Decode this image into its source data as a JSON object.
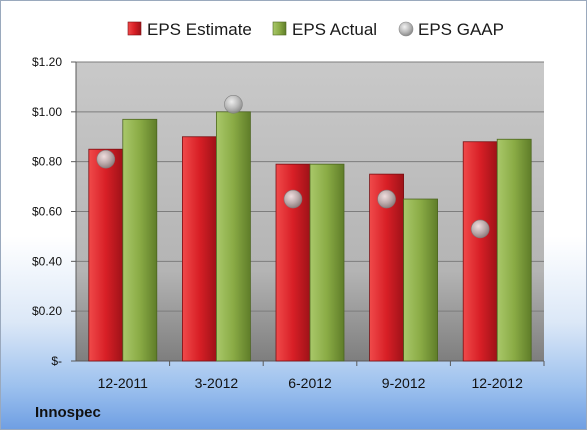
{
  "chart_data": {
    "type": "bar",
    "title": "",
    "xlabel": "",
    "ylabel": "",
    "categories": [
      "12-2011",
      "3-2012",
      "6-2012",
      "9-2012",
      "12-2012"
    ],
    "series": [
      {
        "name": "EPS Estimate",
        "kind": "bar",
        "color": "#d9202a",
        "values": [
          0.85,
          0.9,
          0.79,
          0.75,
          0.88
        ]
      },
      {
        "name": "EPS Actual",
        "kind": "bar",
        "color": "#8fb04a",
        "values": [
          0.97,
          1.0,
          0.79,
          0.65,
          0.89
        ]
      },
      {
        "name": "EPS GAAP",
        "kind": "scatter",
        "color": "#b8b8b8",
        "values": [
          0.81,
          1.03,
          0.65,
          0.65,
          0.53
        ]
      }
    ],
    "ylim": [
      0,
      1.2
    ],
    "yticks": [
      0,
      0.2,
      0.4,
      0.6,
      0.8,
      1.0,
      1.2
    ],
    "ytick_labels": [
      "$-",
      "$0.20",
      "$0.40",
      "$0.60",
      "$0.80",
      "$1.00",
      "$1.20"
    ],
    "grid": true,
    "legend_position": "top"
  },
  "company_label": "Innospec"
}
